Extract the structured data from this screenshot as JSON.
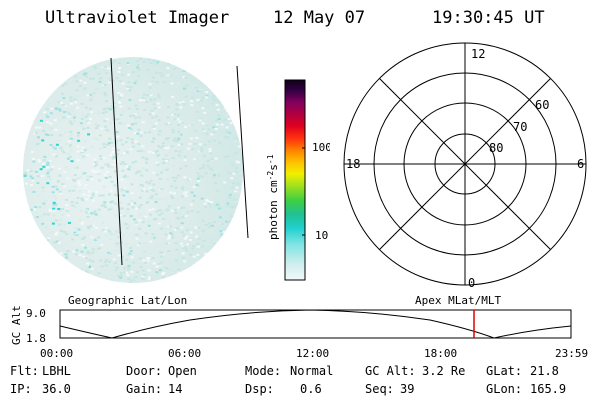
{
  "header": {
    "instrument": "Ultraviolet Imager",
    "date": "12 May 07",
    "time": "19:30:45 UT"
  },
  "colorbar": {
    "unit_prefix": "photon cm",
    "unit_exp1": "-2",
    "unit_mid": "s",
    "unit_exp2": "-1",
    "ticks": [
      "100",
      "10"
    ]
  },
  "polar": {
    "hour_labels": {
      "top": "12",
      "left": "18",
      "right": "6",
      "bottom": "0"
    },
    "lat_labels": [
      "60",
      "70",
      "80"
    ]
  },
  "timeline": {
    "ylabel": "GC Alt",
    "ytick_high": "9.0",
    "ytick_low": "1.8",
    "left_title": "Geographic Lat/Lon",
    "right_title": "Apex MLat/MLT",
    "xticks": [
      "00:00",
      "06:00",
      "12:00",
      "18:00",
      "23:59"
    ],
    "marker_color": "#e00000"
  },
  "info": {
    "flt_label": "Flt:",
    "flt_value": "LBHL",
    "ip_label": "IP:",
    "ip_value": "36.0",
    "door_label": "Door:",
    "door_value": "Open",
    "gain_label": "Gain:",
    "gain_value": "14",
    "mode_label": "Mode:",
    "mode_value": "Normal",
    "dsp_label": "Dsp:",
    "dsp_value": "0.6",
    "gcalt_label": "GC Alt:",
    "gcalt_value": "3.2 Re",
    "seq_label": "Seq:",
    "seq_value": "39",
    "glat_label": "GLat:",
    "glat_value": "21.8",
    "glon_label": "GLon:",
    "glon_value": "165.9"
  }
}
